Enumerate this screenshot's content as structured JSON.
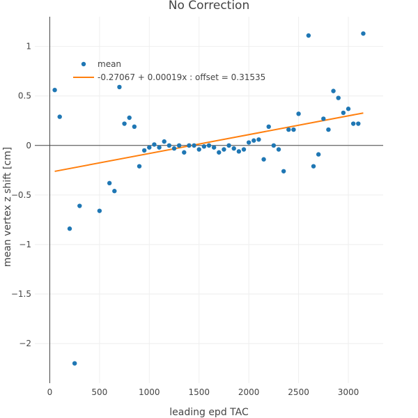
{
  "chart_data": {
    "type": "scatter",
    "title": "No Correction",
    "xlabel": "leading epd TAC",
    "ylabel": "mean vertex z shift [cm]",
    "xlim": [
      -150,
      3350
    ],
    "ylim": [
      -2.4,
      1.3
    ],
    "x_ticks": [
      0,
      500,
      1000,
      1500,
      2000,
      2500,
      3000
    ],
    "y_ticks": [
      -2,
      -1.5,
      -1,
      -0.5,
      0,
      0.5,
      1
    ],
    "grid": true,
    "legend_position": "top-left",
    "colors": {
      "mean": "#1f77b4",
      "fit": "#ff7f0e",
      "zeroline": "#444444"
    },
    "series": [
      {
        "name": "mean",
        "mode": "markers",
        "points": [
          [
            50,
            0.56
          ],
          [
            100,
            0.29
          ],
          [
            200,
            -0.84
          ],
          [
            250,
            -2.2
          ],
          [
            300,
            -0.61
          ],
          [
            500,
            -0.66
          ],
          [
            600,
            -0.38
          ],
          [
            650,
            -0.46
          ],
          [
            700,
            0.59
          ],
          [
            750,
            0.22
          ],
          [
            800,
            0.28
          ],
          [
            850,
            0.19
          ],
          [
            900,
            -0.21
          ],
          [
            950,
            -0.05
          ],
          [
            1000,
            -0.02
          ],
          [
            1050,
            0.01
          ],
          [
            1100,
            -0.02
          ],
          [
            1150,
            0.04
          ],
          [
            1200,
            0.0
          ],
          [
            1250,
            -0.03
          ],
          [
            1300,
            0.0
          ],
          [
            1350,
            -0.07
          ],
          [
            1400,
            0.0
          ],
          [
            1450,
            0.0
          ],
          [
            1500,
            -0.04
          ],
          [
            1550,
            -0.01
          ],
          [
            1600,
            0.0
          ],
          [
            1650,
            -0.02
          ],
          [
            1700,
            -0.07
          ],
          [
            1750,
            -0.04
          ],
          [
            1800,
            0.0
          ],
          [
            1850,
            -0.03
          ],
          [
            1900,
            -0.06
          ],
          [
            1950,
            -0.04
          ],
          [
            2000,
            0.03
          ],
          [
            2050,
            0.05
          ],
          [
            2100,
            0.06
          ],
          [
            2150,
            -0.14
          ],
          [
            2200,
            0.19
          ],
          [
            2250,
            0.0
          ],
          [
            2300,
            -0.04
          ],
          [
            2350,
            -0.26
          ],
          [
            2400,
            0.16
          ],
          [
            2450,
            0.16
          ],
          [
            2500,
            0.32
          ],
          [
            2600,
            1.11
          ],
          [
            2650,
            -0.21
          ],
          [
            2700,
            -0.09
          ],
          [
            2750,
            0.27
          ],
          [
            2800,
            0.16
          ],
          [
            2850,
            0.55
          ],
          [
            2900,
            0.48
          ],
          [
            2950,
            0.33
          ],
          [
            3000,
            0.37
          ],
          [
            3050,
            0.22
          ],
          [
            3100,
            0.22
          ],
          [
            3150,
            1.13
          ]
        ]
      },
      {
        "name": "-0.27067 + 0.00019x : offset = 0.31535",
        "mode": "lines",
        "points": [
          [
            50,
            -0.26117
          ],
          [
            3150,
            0.32783
          ]
        ]
      }
    ]
  }
}
